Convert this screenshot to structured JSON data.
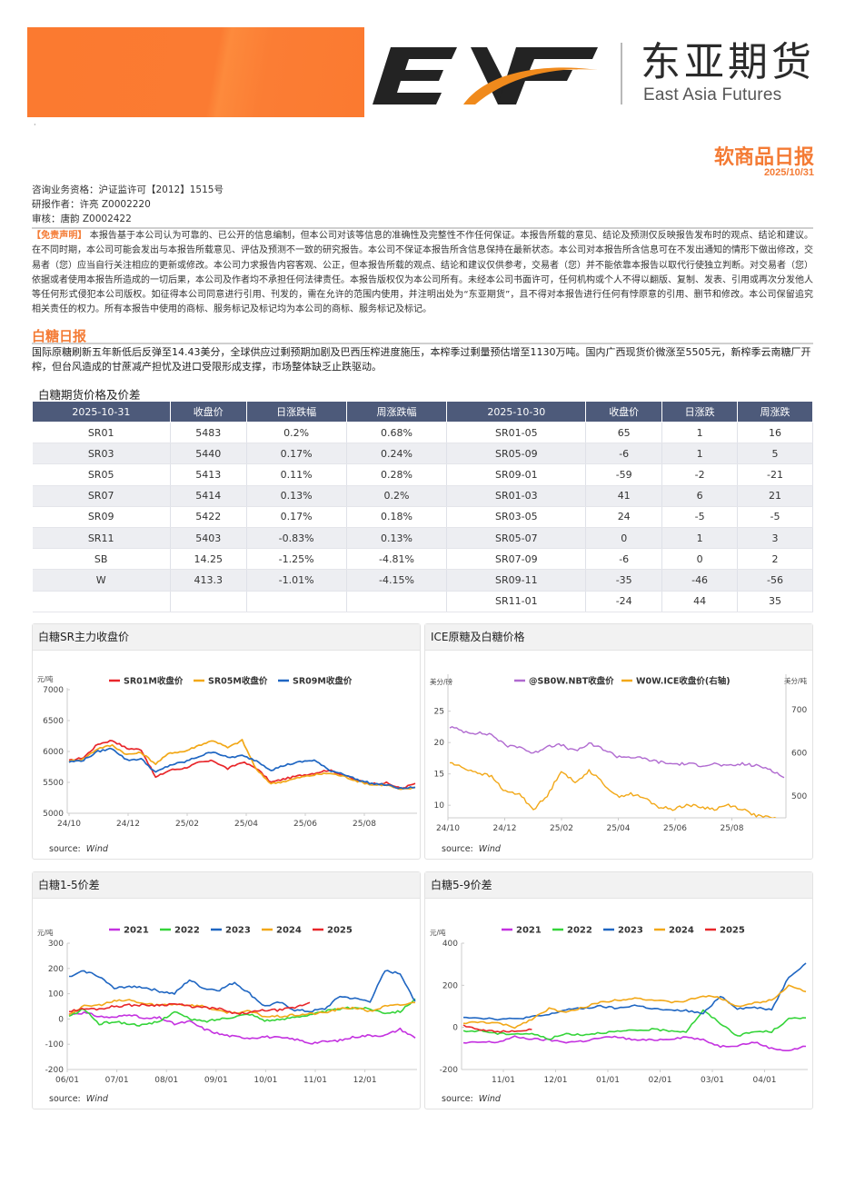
{
  "header": {
    "logo_mark": "EAF",
    "company_cn": "东亚期货",
    "company_en": "East Asia Futures",
    "report_title": "软商品日报",
    "report_date": "2025/10/31",
    "colors": {
      "brand_orange": "#f47b35",
      "table_header": "#4d5a7a"
    }
  },
  "meta": {
    "license": "咨询业务资格：沪证监许可【2012】1515号",
    "author": "研报作者：许亮 Z0002220",
    "reviewer": "审核：唐韵 Z0002422"
  },
  "disclaimer": {
    "tag": "【免责声明】",
    "text": " 本报告基于本公司认为可靠的、已公开的信息编制，但本公司对该等信息的准确性及完整性不作任何保证。本报告所载的意见、结论及预测仅反映报告发布时的观点、结论和建议。在不同时期，本公司可能会发出与本报告所载意见、评估及预测不一致的研究报告。本公司不保证本报告所含信息保持在最新状态。本公司对本报告所含信息可在不发出通知的情形下做出修改，交易者（您）应当自行关注相应的更新或修改。本公司力求报告内容客观、公正，但本报告所载的观点、结论和建议仅供参考，交易者（您）并不能依靠本报告以取代行使独立判断。对交易者（您）依据或者使用本报告所造成的一切后果，本公司及作者均不承担任何法律责任。本报告版权仅为本公司所有。未经本公司书面许可，任何机构或个人不得以翻版、复制、发表、引用或再次分发他人等任何形式侵犯本公司版权。如征得本公司同意进行引用、刊发的，需在允许的范围内使用，并注明出处为“东亚期货”，且不得对本报告进行任何有悖原意的引用、删节和修改。本公司保留追究相关责任的权力。所有本报告中使用的商标、服务标记及标记均为本公司的商标、服务标记及标记。"
  },
  "section": {
    "title": "白糖日报",
    "summary": "国际原糖刷新五年新低后反弹至14.43美分，全球供应过剩预期加剧及巴西压榨进度施压，本榨季过剩量预估增至1130万吨。国内广西现货价微涨至5505元，新榨季云南糖厂开榨，但台风造成的甘蔗减产担忧及进口受限形成支撑，市场整体缺乏止跌驱动。"
  },
  "table": {
    "caption": "白糖期货价格及价差",
    "headers": [
      "2025-10-31",
      "收盘价",
      "日涨跌幅",
      "周涨跌幅",
      "2025-10-30",
      "收盘价",
      "日涨跌",
      "周涨跌"
    ],
    "rows": [
      [
        "SR01",
        "5483",
        "0.2%",
        "0.68%",
        "SR01-05",
        "65",
        "1",
        "16"
      ],
      [
        "SR03",
        "5440",
        "0.17%",
        "0.24%",
        "SR05-09",
        "-6",
        "1",
        "5"
      ],
      [
        "SR05",
        "5413",
        "0.11%",
        "0.28%",
        "SR09-01",
        "-59",
        "-2",
        "-21"
      ],
      [
        "SR07",
        "5414",
        "0.13%",
        "0.2%",
        "SR01-03",
        "41",
        "6",
        "21"
      ],
      [
        "SR09",
        "5422",
        "0.17%",
        "0.18%",
        "SR03-05",
        "24",
        "-5",
        "-5"
      ],
      [
        "SR11",
        "5403",
        "-0.83%",
        "0.13%",
        "SR05-07",
        "0",
        "1",
        "3"
      ],
      [
        "SB",
        "14.25",
        "-1.25%",
        "-4.81%",
        "SR07-09",
        "-6",
        "0",
        "2"
      ],
      [
        "W",
        "413.3",
        "-1.01%",
        "-4.15%",
        "SR09-11",
        "-35",
        "-46",
        "-56"
      ],
      [
        "",
        "",
        "",
        "",
        "SR11-01",
        "-24",
        "44",
        "35"
      ]
    ]
  },
  "chart_data": [
    {
      "id": "sr_main",
      "type": "line",
      "title": "白糖SR主力收盘价",
      "ylabel": "元/吨",
      "ylim": [
        5000,
        7000
      ],
      "yticks": [
        5000,
        5500,
        6000,
        6500,
        7000
      ],
      "xticks": [
        "24/10",
        "24/12",
        "25/02",
        "25/04",
        "25/06",
        "25/08"
      ],
      "legend_position": "top",
      "source": "Wind",
      "x": [
        "24/10",
        "24/11a",
        "24/11b",
        "24/12a",
        "24/12b",
        "25/01a",
        "25/01b",
        "25/02a",
        "25/02b",
        "25/03a",
        "25/03b",
        "25/04a",
        "25/04b",
        "25/05a",
        "25/05b",
        "25/06a",
        "25/06b",
        "25/07a",
        "25/07b",
        "25/08a",
        "25/08b",
        "25/09a",
        "25/09b",
        "25/10a",
        "25/10b"
      ],
      "series": [
        {
          "name": "SR01M收盘价",
          "color": "#e8262a",
          "values": [
            5850,
            5900,
            6120,
            6180,
            6050,
            6030,
            5580,
            5700,
            5730,
            5820,
            5850,
            5720,
            5830,
            5730,
            5500,
            5560,
            5610,
            5650,
            5700,
            5620,
            5530,
            5480,
            5490,
            5400,
            5483
          ]
        },
        {
          "name": "SR05M收盘价",
          "color": "#f2a818",
          "values": [
            5840,
            5880,
            6050,
            6100,
            5950,
            5980,
            5800,
            5980,
            6000,
            6100,
            6180,
            6060,
            6180,
            5700,
            5480,
            5520,
            5580,
            5620,
            5650,
            5600,
            5520,
            5460,
            5460,
            5380,
            5413
          ]
        },
        {
          "name": "SR09M收盘价",
          "color": "#1f66c2",
          "values": [
            5830,
            5860,
            6000,
            6050,
            5860,
            5880,
            5660,
            5780,
            5830,
            5920,
            6000,
            5900,
            5930,
            5850,
            5700,
            5780,
            5830,
            5860,
            5700,
            5640,
            5540,
            5480,
            5460,
            5400,
            5422
          ]
        }
      ]
    },
    {
      "id": "ice_sugar",
      "type": "line",
      "title": "ICE原糖及白糖价格",
      "ylabel": "美分/磅",
      "ylabel_right": "美分/吨",
      "ylim": [
        8,
        28
      ],
      "ylim_right": [
        450,
        740
      ],
      "yticks": [
        10,
        15,
        20,
        25
      ],
      "yticks_right": [
        500,
        600,
        700
      ],
      "xticks": [
        "24/10",
        "24/12",
        "25/02",
        "25/04",
        "25/06",
        "25/08"
      ],
      "legend_position": "top",
      "source": "Wind",
      "series": [
        {
          "name": "@SB0W.NBT收盘价",
          "color": "#b06ad0",
          "axis": "left",
          "values": [
            22.5,
            21.8,
            21.5,
            21.3,
            19.5,
            19.4,
            18.2,
            19.5,
            19.6,
            18.6,
            19.8,
            19.0,
            17.8,
            17.7,
            17.4,
            16.9,
            16.6,
            16.6,
            16.4,
            16.6,
            16.2,
            16.6,
            16.3,
            15.8,
            14.4
          ]
        },
        {
          "name": "W0W.ICE收盘价(右轴)",
          "color": "#f2a818",
          "axis": "right",
          "values": [
            578,
            565,
            555,
            545,
            510,
            505,
            470,
            500,
            560,
            530,
            560,
            530,
            500,
            505,
            495,
            475,
            470,
            480,
            475,
            470,
            480,
            470,
            455,
            450,
            445
          ]
        }
      ]
    },
    {
      "id": "spread_1_5",
      "type": "line",
      "title": "白糖1-5价差",
      "ylabel": "元/吨",
      "ylim": [
        -200,
        300
      ],
      "yticks": [
        -200,
        -100,
        0,
        100,
        200,
        300
      ],
      "xticks": [
        "06/01",
        "07/01",
        "08/01",
        "09/01",
        "10/01",
        "11/01",
        "12/01"
      ],
      "legend_position": "top",
      "source": "Wind",
      "series": [
        {
          "name": "2021",
          "color": "#c432e0",
          "values": [
            20,
            25,
            10,
            5,
            20,
            0,
            5,
            -20,
            -10,
            -40,
            -60,
            -70,
            -75,
            -70,
            -75,
            -80,
            -95,
            -90,
            -85,
            -70,
            -65,
            -65,
            -40,
            -75
          ]
        },
        {
          "name": "2022",
          "color": "#35d43a",
          "values": [
            10,
            40,
            -20,
            -10,
            -20,
            -25,
            -10,
            30,
            0,
            -10,
            0,
            10,
            20,
            -5,
            -5,
            10,
            15,
            30,
            40,
            45,
            40,
            25,
            30,
            80
          ]
        },
        {
          "name": "2023",
          "color": "#1f66c2",
          "values": [
            165,
            190,
            170,
            120,
            130,
            125,
            110,
            100,
            155,
            120,
            115,
            145,
            100,
            50,
            65,
            35,
            30,
            40,
            90,
            80,
            70,
            190,
            180,
            70
          ]
        },
        {
          "name": "2024",
          "color": "#f2a818",
          "values": [
            20,
            50,
            55,
            70,
            75,
            60,
            55,
            60,
            55,
            50,
            30,
            25,
            30,
            10,
            10,
            15,
            20,
            25,
            40,
            45,
            30,
            50,
            55,
            65
          ]
        },
        {
          "name": "2025",
          "color": "#e8262a",
          "values": [
            30,
            40,
            40,
            50,
            55,
            55,
            55,
            60,
            50,
            45,
            40,
            20,
            25,
            35,
            35,
            45,
            65,
            null,
            null,
            null,
            null,
            null,
            null,
            null
          ]
        }
      ]
    },
    {
      "id": "spread_5_9",
      "type": "line",
      "title": "白糖5-9价差",
      "ylabel": "元/吨",
      "ylim": [
        -200,
        400
      ],
      "yticks": [
        -200,
        0,
        200,
        400
      ],
      "xticks": [
        "11/01",
        "12/01",
        "01/01",
        "02/01",
        "03/01",
        "04/01"
      ],
      "legend_position": "top",
      "source": "Wind",
      "series": [
        {
          "name": "2021",
          "color": "#c432e0",
          "values": [
            -75,
            -70,
            -70,
            -45,
            -55,
            -60,
            -70,
            -65,
            -50,
            -45,
            -60,
            -60,
            -55,
            -45,
            -60,
            -90,
            -85,
            -70,
            -100,
            -110,
            -90
          ]
        },
        {
          "name": "2022",
          "color": "#35d43a",
          "values": [
            -20,
            -15,
            -30,
            -30,
            -30,
            -55,
            -30,
            -35,
            -25,
            -20,
            -15,
            -10,
            -15,
            -20,
            80,
            20,
            -40,
            -20,
            -20,
            40,
            45
          ]
        },
        {
          "name": "2023",
          "color": "#1f66c2",
          "values": [
            50,
            45,
            40,
            40,
            50,
            60,
            85,
            90,
            100,
            90,
            105,
            90,
            80,
            80,
            65,
            150,
            90,
            95,
            85,
            240,
            305
          ]
        },
        {
          "name": "2024",
          "color": "#f2a818",
          "values": [
            20,
            25,
            20,
            0,
            40,
            90,
            70,
            95,
            120,
            130,
            140,
            130,
            120,
            125,
            150,
            140,
            100,
            115,
            130,
            200,
            170
          ]
        },
        {
          "name": "2025",
          "color": "#e8262a",
          "values": [
            10,
            -10,
            -20,
            -20,
            -10,
            null,
            null,
            null,
            null,
            null,
            null,
            null,
            null,
            null,
            null,
            null,
            null,
            null,
            null,
            null,
            null
          ]
        }
      ]
    }
  ]
}
